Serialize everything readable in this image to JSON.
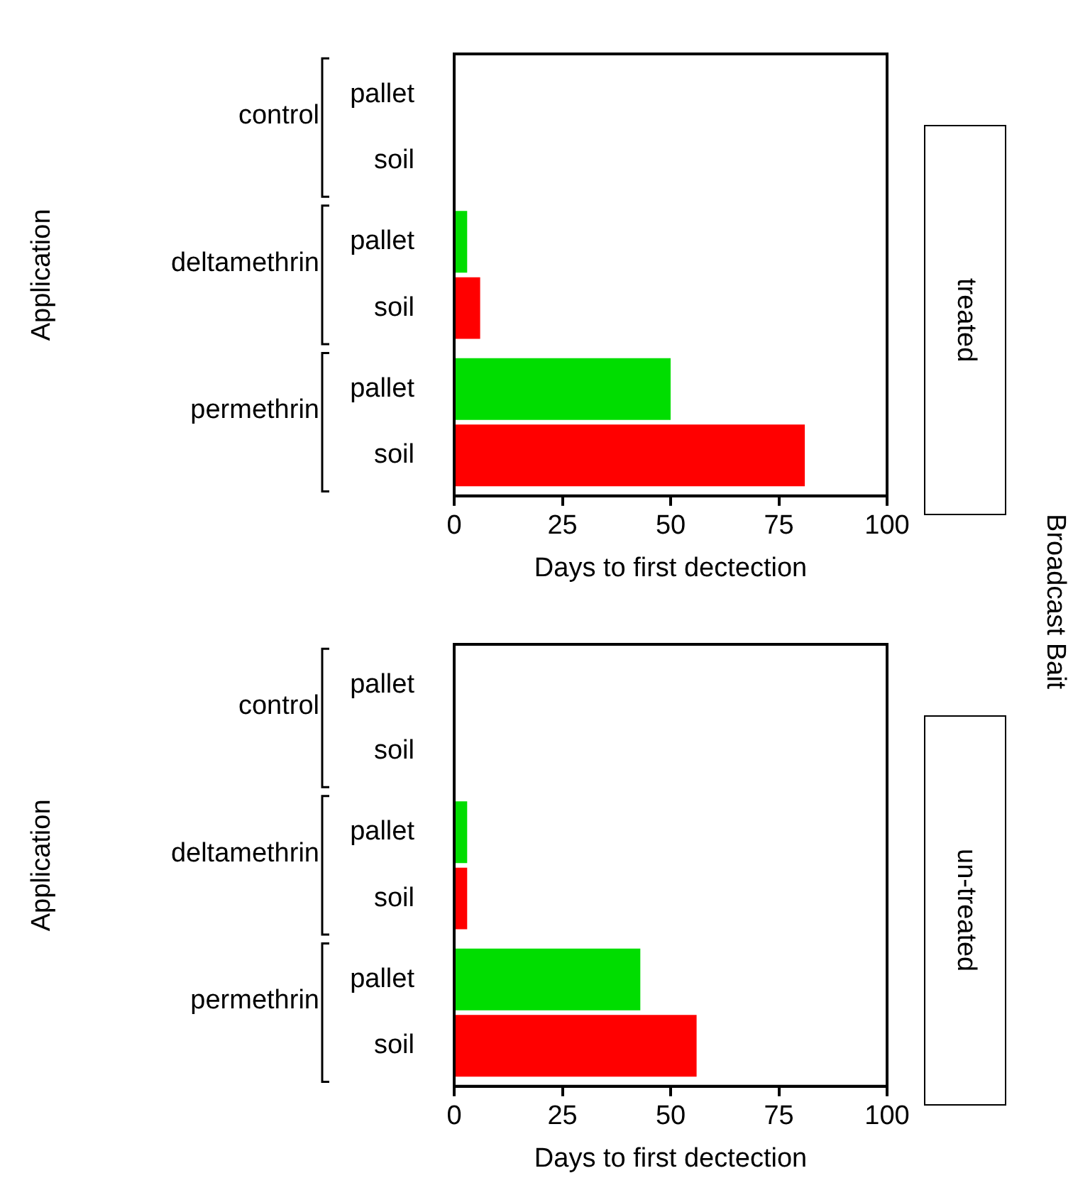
{
  "chart_data": [
    {
      "type": "bar",
      "orientation": "horizontal",
      "categories": [
        "control",
        "deltamethrin",
        "permethrin"
      ],
      "series": [
        {
          "name": "pallet",
          "color": "#00dd00",
          "values": [
            0,
            3,
            50
          ]
        },
        {
          "name": "soil",
          "color": "#ff0000",
          "values": [
            0,
            6,
            81
          ]
        }
      ],
      "xlim": [
        0,
        100
      ],
      "xticks": [
        0,
        25,
        50,
        75,
        100
      ],
      "xlabel": "Days to first dectection",
      "ylabel": "Application",
      "legend": "left",
      "annotations": [
        "treated",
        "Broadcast Bait"
      ]
    },
    {
      "type": "bar",
      "orientation": "horizontal",
      "categories": [
        "control",
        "deltamethrin",
        "permethrin"
      ],
      "series": [
        {
          "name": "pallet",
          "color": "#00dd00",
          "values": [
            0,
            3,
            43
          ]
        },
        {
          "name": "soil",
          "color": "#ff0000",
          "values": [
            0,
            3,
            56
          ]
        }
      ],
      "xlim": [
        0,
        100
      ],
      "xticks": [
        0,
        25,
        50,
        75,
        100
      ],
      "xlabel": "Days to first dectection",
      "ylabel": "Application",
      "legend": "left",
      "annotations": [
        "un-treated"
      ]
    }
  ]
}
